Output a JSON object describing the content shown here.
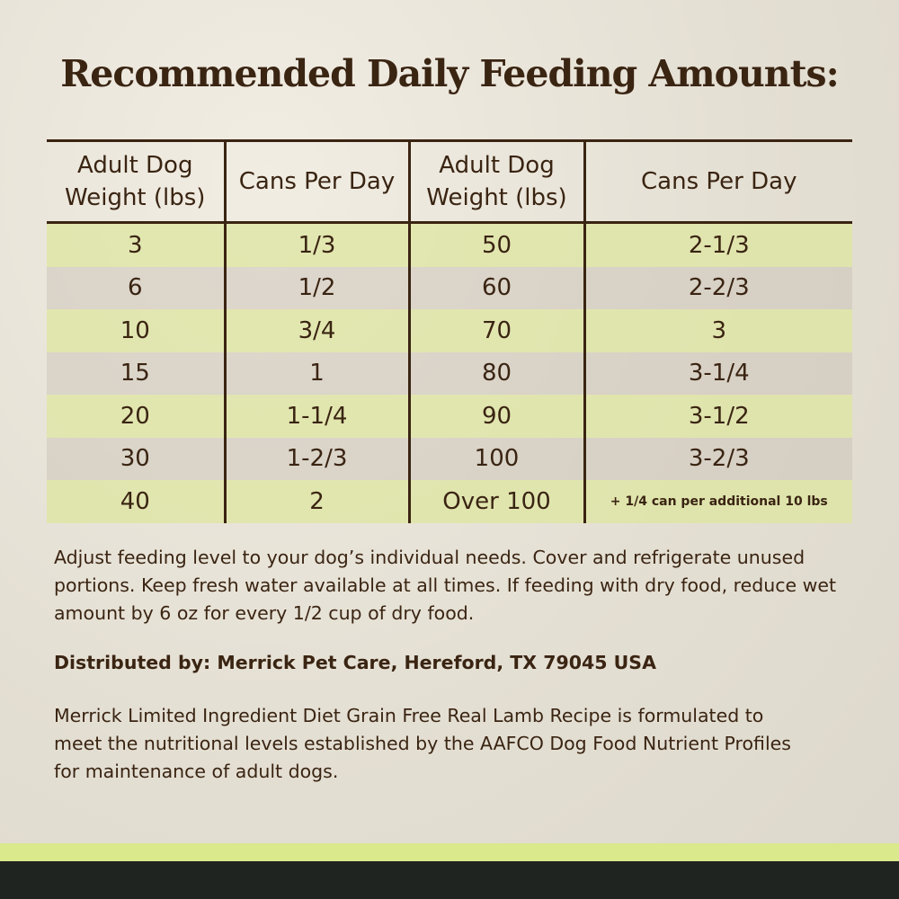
{
  "title": "Recommended Daily Feeding Amounts:",
  "table": {
    "headers": [
      "Adult Dog Weight (lbs)",
      "Cans Per Day",
      "Adult Dog Weight (lbs)",
      "Cans Per Day"
    ],
    "rows": [
      [
        "3",
        "1/3",
        "50",
        "2-1/3"
      ],
      [
        "6",
        "1/2",
        "60",
        "2-2/3"
      ],
      [
        "10",
        "3/4",
        "70",
        "3"
      ],
      [
        "15",
        "1",
        "80",
        "3-1/4"
      ],
      [
        "20",
        "1-1/4",
        "90",
        "3-1/2"
      ],
      [
        "30",
        "1-2/3",
        "100",
        "3-2/3"
      ],
      [
        "40",
        "2",
        "Over 100",
        "+ 1/4 can per additional 10 lbs"
      ]
    ]
  },
  "note": "Adjust feeding level to your dog’s individual needs. Cover and refrigerate unused portions. Keep fresh water available at all times. If feeding with dry food, reduce wet amount by 6 oz for every 1/2 cup of dry food.",
  "distributor": "Distributed by: Merrick Pet Care, Hereford, TX 79045 USA",
  "statement": "Merrick Limited Ingredient Diet Grain Free Real Lamb Recipe is formulated to meet the nutritional levels established by the AAFCO Dog Food Nutrient Profiles for maintenance of adult dogs."
}
